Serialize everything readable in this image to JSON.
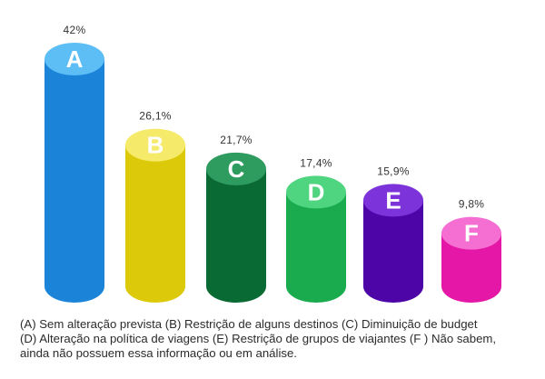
{
  "chart_data": {
    "type": "bar",
    "categories": [
      "A",
      "B",
      "C",
      "D",
      "E",
      "F"
    ],
    "values": [
      42,
      26.1,
      21.7,
      17.4,
      15.9,
      9.8
    ],
    "value_labels": [
      "42%",
      "26,1%",
      "21,7%",
      "17,4%",
      "15,9%",
      "9,8%"
    ],
    "colors": [
      {
        "body": "#1c84d8",
        "top": "#5dbdf5"
      },
      {
        "body": "#dcca0a",
        "top": "#f5ea6a"
      },
      {
        "body": "#0a6a34",
        "top": "#2e9b5f"
      },
      {
        "body": "#1aab4e",
        "top": "#4fd47f"
      },
      {
        "body": "#4d05a8",
        "top": "#7c33d9"
      },
      {
        "body": "#e417a6",
        "top": "#f56fd2"
      }
    ],
    "ylim": [
      0,
      42
    ],
    "legend_lines": [
      "(A) Sem alteração prevista (B) Restrição de alguns destinos (C) Diminuição de budget",
      "(D) Alteração na política de viagens (E) Restrição de grupos de viajantes (F ) Não sabem,",
      "ainda não possuem essa informação ou em análise."
    ]
  }
}
